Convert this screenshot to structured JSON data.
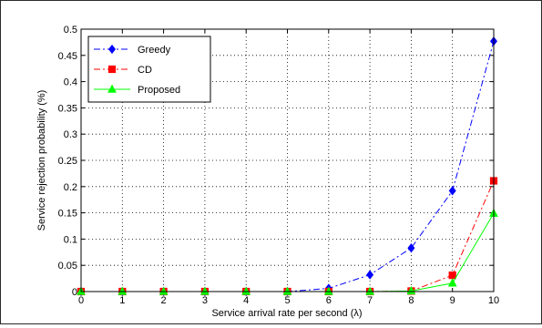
{
  "chart_data": {
    "type": "line",
    "xlabel": "Service arrival rate per second (λ)",
    "ylabel": "Service rejection probability (%)",
    "x": [
      0,
      1,
      2,
      3,
      4,
      5,
      6,
      7,
      8,
      9,
      10
    ],
    "xticks": [
      "0",
      "1",
      "2",
      "3",
      "4",
      "5",
      "6",
      "7",
      "8",
      "9",
      "10"
    ],
    "yticks": [
      "0",
      "0.05",
      "0.1",
      "0.15",
      "0.2",
      "0.25",
      "0.3",
      "0.35",
      "0.4",
      "0.45",
      "0.5"
    ],
    "xlim": [
      0,
      10
    ],
    "ylim": [
      0,
      0.5
    ],
    "grid": true,
    "legend_position": "top-left",
    "series": [
      {
        "name": "Greedy",
        "color": "#0000ff",
        "line_style": "dash-dot",
        "marker": "diamond",
        "values": [
          0,
          0,
          0,
          0,
          0,
          0,
          0.006,
          0.032,
          0.083,
          0.192,
          0.477
        ]
      },
      {
        "name": "CD",
        "color": "#ff0000",
        "line_style": "dash-dot",
        "marker": "square",
        "values": [
          0,
          0,
          0,
          0,
          0,
          0,
          0,
          0,
          0.001,
          0.031,
          0.211
        ]
      },
      {
        "name": "Proposed",
        "color": "#00ff00",
        "line_style": "solid",
        "marker": "triangle",
        "values": [
          0,
          0,
          0,
          0,
          0,
          0,
          0,
          0,
          0.001,
          0.016,
          0.149
        ]
      }
    ]
  }
}
